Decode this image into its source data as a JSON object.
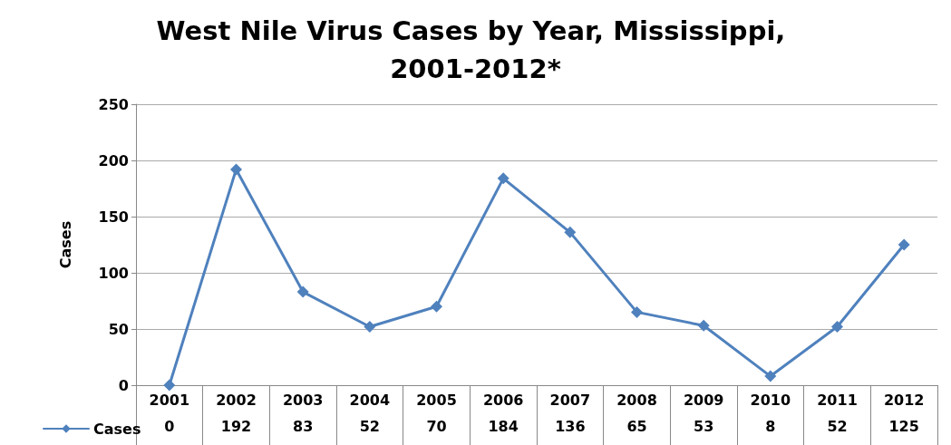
{
  "chart_data": {
    "type": "line",
    "title": "West Nile Virus Cases by Year, Mississippi, 2001-2012*",
    "ylabel": "Cases",
    "categories": [
      "2001",
      "2002",
      "2003",
      "2004",
      "2005",
      "2006",
      "2007",
      "2008",
      "2009",
      "2010",
      "2011",
      "2012"
    ],
    "series": [
      {
        "name": "Cases",
        "color": "#4f81bd",
        "values": [
          0,
          192,
          83,
          52,
          70,
          184,
          136,
          65,
          53,
          8,
          52,
          125
        ]
      }
    ],
    "ylim": [
      0,
      250
    ],
    "yticks": [
      0,
      50,
      100,
      150,
      200,
      250
    ],
    "grid": "y",
    "marker": "diamond",
    "line_style": "solid",
    "legend": "bottom left",
    "data_labels": true
  }
}
